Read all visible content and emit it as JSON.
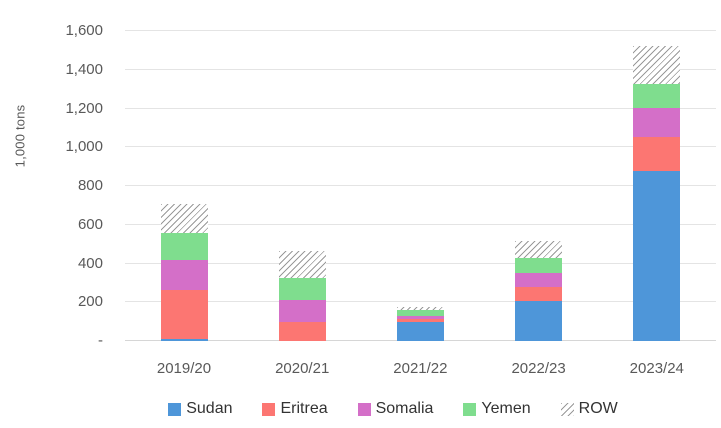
{
  "axis": {
    "y_title": "1,000 tons",
    "ytick_labels_top_to_bottom": [
      "1,600",
      "1,400",
      "1,200",
      "1,000",
      "800",
      "600",
      "400",
      "200",
      "-"
    ]
  },
  "colors": {
    "sudan": "#4E96D9",
    "eritrea": "#FC7672",
    "somalia": "#D46FC8",
    "yemen": "#7FDD8E",
    "row_hatch_stroke": "#9A9A9A",
    "gridline": "#E4E4E4",
    "axis_line": "#D6D6D6",
    "tick_text": "#595959",
    "legend_text": "#333333"
  },
  "chart_data": {
    "type": "bar",
    "stacked": true,
    "title": "",
    "xlabel": "",
    "ylabel": "1,000 tons",
    "categories": [
      "2019/20",
      "2020/21",
      "2021/22",
      "2022/23",
      "2023/24"
    ],
    "series": [
      {
        "name": "Sudan",
        "color": "#4E96D9",
        "pattern": "solid",
        "values": [
          12,
          0,
          100,
          205,
          875
        ]
      },
      {
        "name": "Eritrea",
        "color": "#FC7672",
        "pattern": "solid",
        "values": [
          250,
          100,
          15,
          75,
          180
        ]
      },
      {
        "name": "Somalia",
        "color": "#D46FC8",
        "pattern": "solid",
        "values": [
          155,
          112,
          15,
          70,
          150
        ]
      },
      {
        "name": "Yemen",
        "color": "#7FDD8E",
        "pattern": "solid",
        "values": [
          140,
          112,
          31,
          80,
          120
        ]
      },
      {
        "name": "ROW",
        "color": "#9A9A9A",
        "pattern": "diagonal-hatch",
        "values": [
          150,
          140,
          16,
          85,
          200
        ]
      }
    ],
    "totals": [
      707,
      464,
      177,
      515,
      1525
    ],
    "ylim": [
      0,
      1600
    ],
    "ytick_step": 200,
    "grid": true,
    "legend_position": "bottom"
  }
}
